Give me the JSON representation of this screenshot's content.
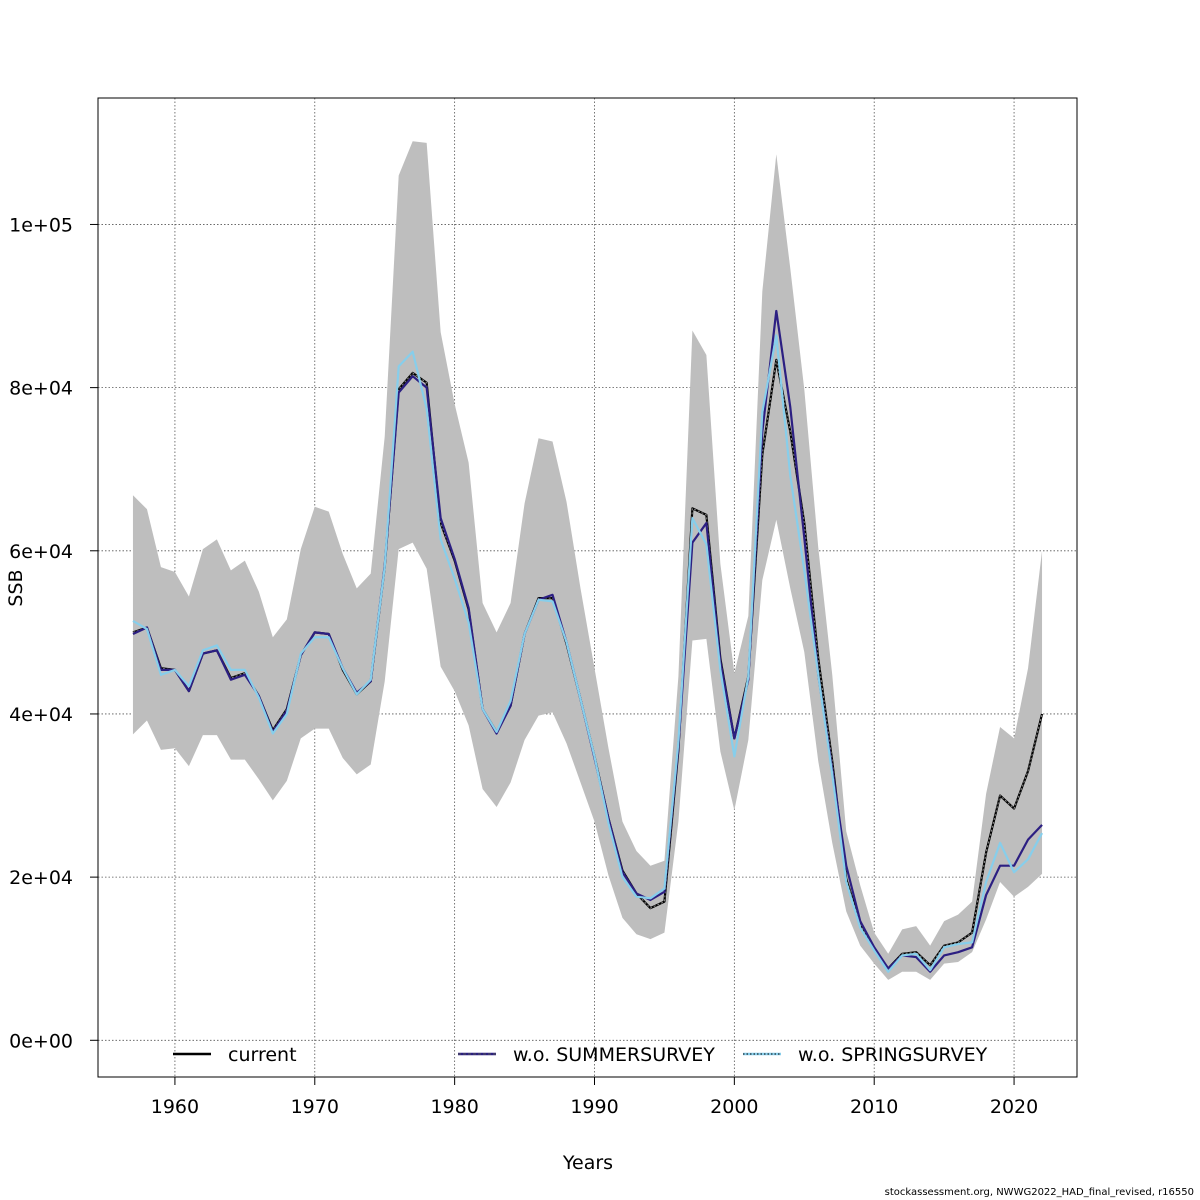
{
  "chart_data": {
    "type": "line",
    "xlabel": "Years",
    "ylabel": "SSB",
    "xlim": [
      1954.5,
      2024.5
    ],
    "ylim": [
      -4500,
      115500
    ],
    "x_ticks": [
      1960,
      1970,
      1980,
      1990,
      2000,
      2010,
      2020
    ],
    "x_tick_labels": [
      "1960",
      "1970",
      "1980",
      "1990",
      "2000",
      "2010",
      "2020"
    ],
    "y_ticks": [
      0,
      20000,
      40000,
      60000,
      80000,
      100000
    ],
    "y_tick_labels": [
      "0e+00",
      "2e+04",
      "4e+04",
      "6e+04",
      "8e+04",
      "1e+05"
    ],
    "grid": true,
    "legend_position": "bottom",
    "years": [
      1957,
      1958,
      1959,
      1960,
      1961,
      1962,
      1963,
      1964,
      1965,
      1966,
      1967,
      1968,
      1969,
      1970,
      1971,
      1972,
      1973,
      1974,
      1975,
      1976,
      1977,
      1978,
      1979,
      1980,
      1981,
      1982,
      1983,
      1984,
      1985,
      1986,
      1987,
      1988,
      1989,
      1990,
      1991,
      1992,
      1993,
      1994,
      1995,
      1996,
      1997,
      1998,
      1999,
      2000,
      2001,
      2002,
      2003,
      2004,
      2005,
      2006,
      2007,
      2008,
      2009,
      2010,
      2011,
      2012,
      2013,
      2014,
      2015,
      2016,
      2017,
      2018,
      2019,
      2020,
      2021,
      2022
    ],
    "band": {
      "lower": [
        37500,
        39200,
        35600,
        35800,
        33600,
        37400,
        37400,
        34400,
        34400,
        32000,
        29400,
        31800,
        37000,
        38200,
        38200,
        34600,
        32600,
        33800,
        44000,
        60200,
        61000,
        57800,
        45800,
        42800,
        38600,
        30800,
        28600,
        31600,
        36800,
        39800,
        40200,
        36400,
        31600,
        26800,
        20200,
        15000,
        13000,
        12400,
        13200,
        26800,
        49000,
        49200,
        35400,
        28200,
        36800,
        56400,
        63800,
        55400,
        47600,
        34200,
        24200,
        15800,
        11600,
        9400,
        7400,
        8400,
        8400,
        7400,
        9400,
        9600,
        10800,
        14800,
        19400,
        17600,
        18800,
        20400
      ],
      "upper": [
        66800,
        65100,
        58000,
        57400,
        54400,
        60200,
        61400,
        57600,
        58800,
        55000,
        49400,
        51600,
        60200,
        65400,
        64800,
        59600,
        55400,
        57200,
        74000,
        106000,
        110200,
        110000,
        86800,
        78000,
        70800,
        53600,
        50000,
        53600,
        65800,
        73800,
        73400,
        66000,
        55400,
        45600,
        35800,
        26800,
        23200,
        21400,
        22000,
        44600,
        87000,
        84000,
        58400,
        45000,
        52000,
        91800,
        108600,
        94600,
        79800,
        60400,
        44800,
        25600,
        19000,
        13200,
        10600,
        13600,
        14000,
        11600,
        14600,
        15400,
        17000,
        30200,
        38400,
        37000,
        45600,
        60000
      ]
    },
    "series": [
      {
        "name": "current",
        "color": "#000000",
        "values": [
          50000,
          50600,
          45600,
          45400,
          42800,
          47400,
          47800,
          44400,
          45000,
          42200,
          38000,
          40600,
          47200,
          50000,
          49800,
          45400,
          42400,
          44000,
          58000,
          79800,
          81800,
          80600,
          63400,
          58800,
          52800,
          40600,
          37800,
          41000,
          49800,
          54200,
          54200,
          48600,
          41800,
          34800,
          27200,
          20800,
          18000,
          16200,
          17000,
          35600,
          65200,
          64400,
          46800,
          37000,
          44600,
          71800,
          83400,
          74600,
          63400,
          46800,
          34200,
          19800,
          14200,
          11200,
          8800,
          10600,
          10800,
          9200,
          11600,
          12000,
          13200,
          23000,
          30000,
          28400,
          33000,
          40000
        ]
      },
      {
        "name": "w.o. SUMMERSURVEY",
        "color": "#2c1f82",
        "values": [
          49800,
          50600,
          45400,
          45400,
          42800,
          47400,
          47800,
          44200,
          44800,
          42200,
          37800,
          40400,
          47200,
          50000,
          49800,
          45600,
          42600,
          44000,
          58200,
          79400,
          81400,
          80000,
          64000,
          59000,
          53000,
          40600,
          37600,
          41000,
          49800,
          54000,
          54600,
          48800,
          41800,
          34600,
          27200,
          20600,
          18000,
          17200,
          18200,
          36000,
          61000,
          63400,
          46400,
          37000,
          44200,
          74600,
          89400,
          77600,
          61600,
          44800,
          33200,
          21400,
          14600,
          11400,
          8800,
          10400,
          10200,
          8400,
          10400,
          10800,
          11400,
          17800,
          21400,
          21400,
          24600,
          26400
        ]
      },
      {
        "name": "w.o. SPRINGSURVEY",
        "color": "#87ceeb",
        "values": [
          51400,
          50400,
          44800,
          45400,
          43400,
          47800,
          48400,
          45400,
          45400,
          42000,
          37600,
          40000,
          47400,
          49400,
          49400,
          45600,
          42400,
          44200,
          58000,
          82600,
          84400,
          77400,
          61400,
          56600,
          51200,
          40600,
          37800,
          41600,
          49800,
          54000,
          53800,
          48800,
          41800,
          34800,
          26600,
          20000,
          17600,
          17400,
          18600,
          36600,
          64000,
          60800,
          45400,
          34800,
          44600,
          77000,
          86400,
          69200,
          57600,
          44800,
          32600,
          19400,
          13800,
          11000,
          8400,
          10400,
          10600,
          8600,
          11400,
          11800,
          12000,
          19400,
          24200,
          20600,
          22200,
          25400
        ]
      }
    ]
  },
  "footer": "stockassessment.org, NWWG2022_HAD_final_revised, r16550"
}
